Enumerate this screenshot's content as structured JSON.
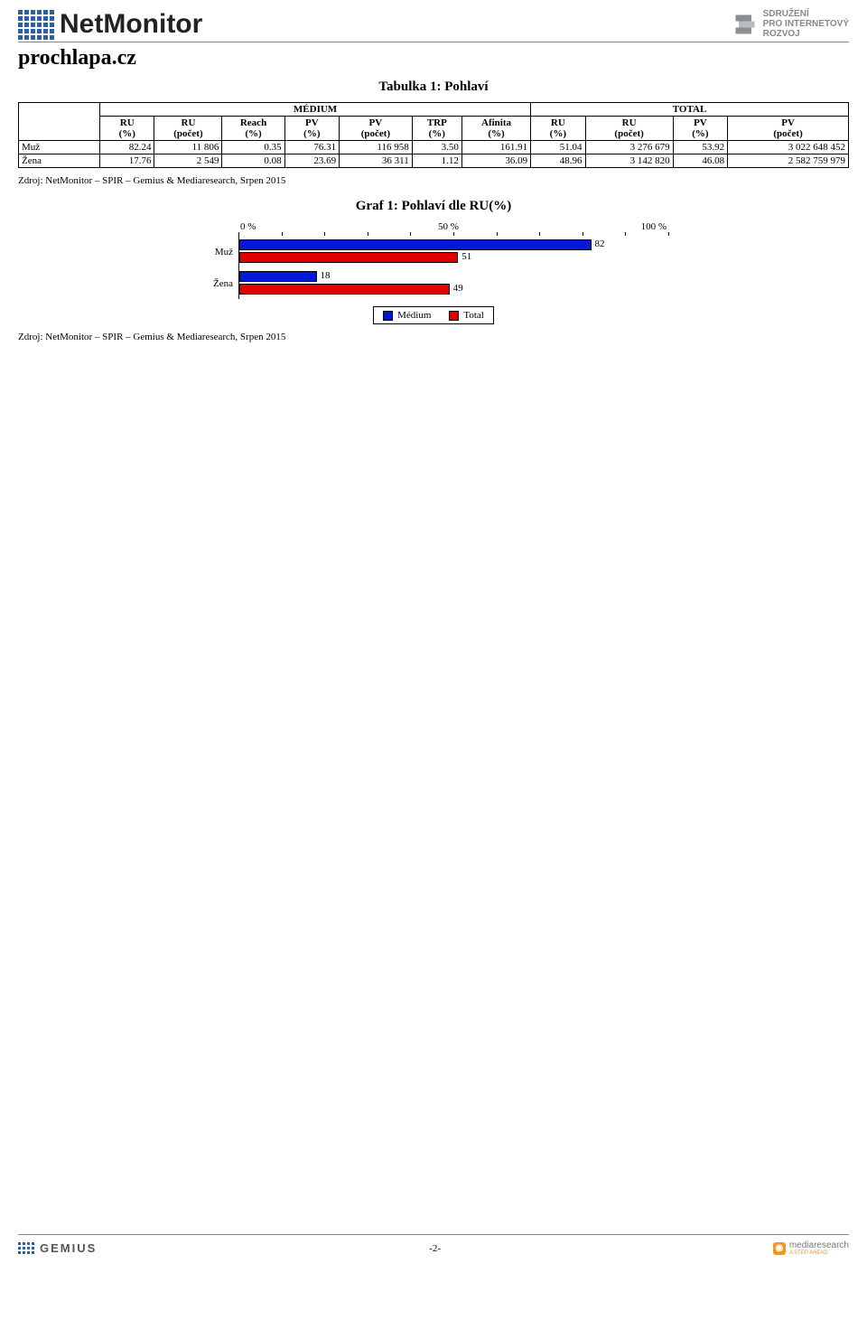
{
  "header": {
    "brand": "NetMonitor",
    "right_org": "SDRUŽENÍ\nPRO INTERNETOVÝ\nROZVOJ"
  },
  "site_title": "prochlapa.cz",
  "table": {
    "title": "Tabulka 1: Pohlaví",
    "group_headers": [
      "MÉDIUM",
      "TOTAL"
    ],
    "columns": [
      "RU (%)",
      "RU (počet)",
      "Reach (%)",
      "PV (%)",
      "PV (počet)",
      "TRP (%)",
      "Afinita (%)",
      "RU (%)",
      "RU (počet)",
      "PV (%)",
      "PV (počet)"
    ],
    "rows": [
      {
        "label": "Muž",
        "cells": [
          "82.24",
          "11 806",
          "0.35",
          "76.31",
          "116 958",
          "3.50",
          "161.91",
          "51.04",
          "3 276 679",
          "53.92",
          "3 022 648 452"
        ]
      },
      {
        "label": "Žena",
        "cells": [
          "17.76",
          "2 549",
          "0.08",
          "23.69",
          "36 311",
          "1.12",
          "36.09",
          "48.96",
          "3 142 820",
          "46.08",
          "2 582 759 979"
        ]
      }
    ]
  },
  "source_line": "Zdroj: NetMonitor – SPIR – Gemius & Mediaresearch, Srpen 2015",
  "chart": {
    "title": "Graf 1: Pohlaví dle RU(%)",
    "x_ticks": [
      "0 %",
      "50 %",
      "100 %"
    ],
    "x_max": 100,
    "colors": {
      "medium": "#0018d8",
      "total": "#e00000",
      "border": "#000000"
    },
    "categories": [
      {
        "label": "Muž",
        "medium": 82,
        "total": 51
      },
      {
        "label": "Žena",
        "medium": 18,
        "total": 49
      }
    ],
    "legend": [
      {
        "label": "Médium",
        "color": "#0018d8"
      },
      {
        "label": "Total",
        "color": "#e00000"
      }
    ]
  },
  "footer": {
    "left_brand": "GEMIUS",
    "page_number": "-2-",
    "right_brand": "mediaresearch",
    "right_tag": "A STEP AHEAD"
  }
}
